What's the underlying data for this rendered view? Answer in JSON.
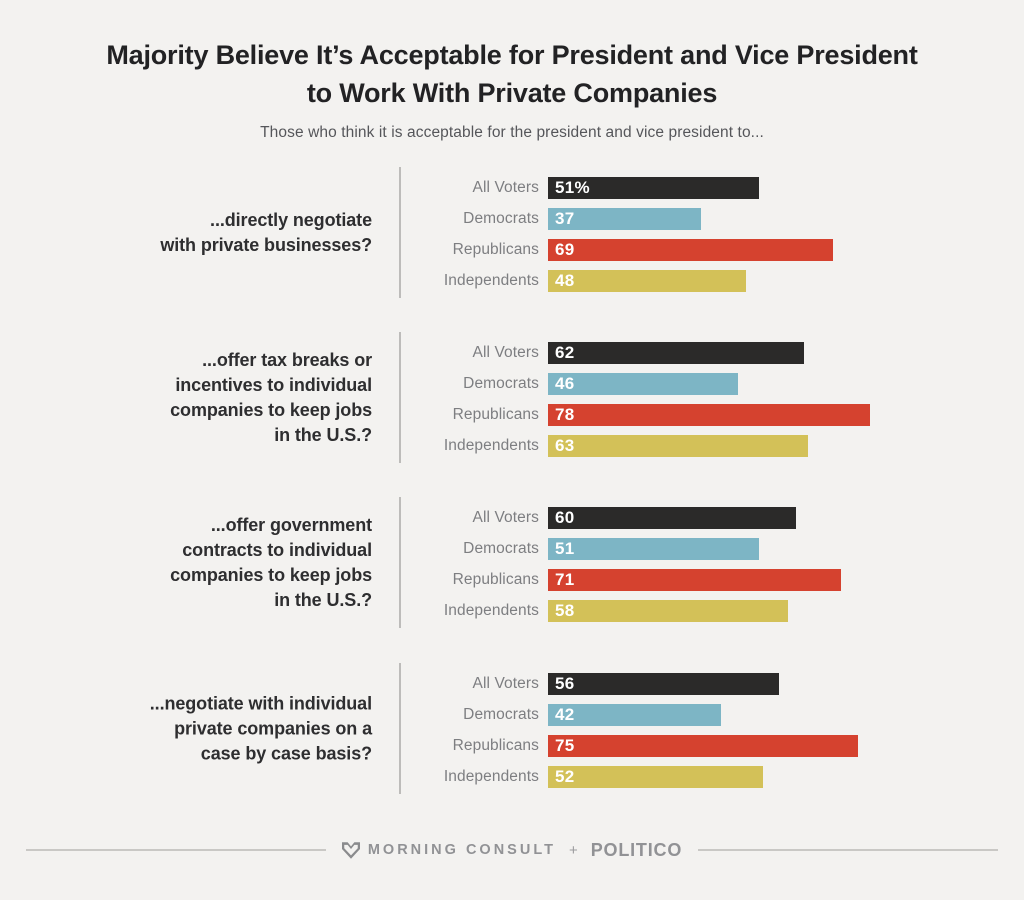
{
  "header": {
    "title_line1": "Majority Believe It’s Acceptable for President and Vice President",
    "title_line2": "to Work With Private Companies",
    "subtitle": "Those who think it is acceptable for the president and vice president to..."
  },
  "chart_data": {
    "type": "bar",
    "orientation": "horizontal",
    "value_unit": "percent",
    "xlim": [
      0,
      100
    ],
    "grid": false,
    "legend": "none",
    "categories": [
      "All Voters",
      "Democrats",
      "Republicans",
      "Independents"
    ],
    "colors": [
      "#2b2a29",
      "#7db5c5",
      "#d5422f",
      "#d3c158"
    ],
    "groups": [
      {
        "question": "...directly negotiate with private businesses?",
        "question_lines": [
          "...directly negotiate",
          "with private businesses?"
        ],
        "values": [
          51,
          37,
          69,
          48
        ],
        "value_labels": [
          "51%",
          "37",
          "69",
          "48"
        ]
      },
      {
        "question": "...offer tax breaks or incentives to individual companies to keep jobs in the U.S.?",
        "question_lines": [
          "...offer tax breaks or",
          "incentives to individual",
          "companies to keep jobs",
          "in the U.S.?"
        ],
        "values": [
          62,
          46,
          78,
          63
        ],
        "value_labels": [
          "62",
          "46",
          "78",
          "63"
        ]
      },
      {
        "question": "...offer government contracts to individual companies to keep jobs in the U.S.?",
        "question_lines": [
          "...offer government",
          "contracts to individual",
          "companies to keep jobs",
          "in the U.S.?"
        ],
        "values": [
          60,
          51,
          71,
          58
        ],
        "value_labels": [
          "60",
          "51",
          "71",
          "58"
        ]
      },
      {
        "question": "...negotiate with individual private companies on a case by case basis?",
        "question_lines": [
          "...negotiate with individual",
          "private companies on a",
          "case by case basis?"
        ],
        "values": [
          56,
          42,
          75,
          52
        ],
        "value_labels": [
          "56",
          "42",
          "75",
          "52"
        ]
      }
    ]
  },
  "footer": {
    "brand_1": "MORNING CONSULT",
    "separator": "+",
    "brand_2": "POLITICO",
    "logo_icon": "morning-consult-m-icon"
  }
}
